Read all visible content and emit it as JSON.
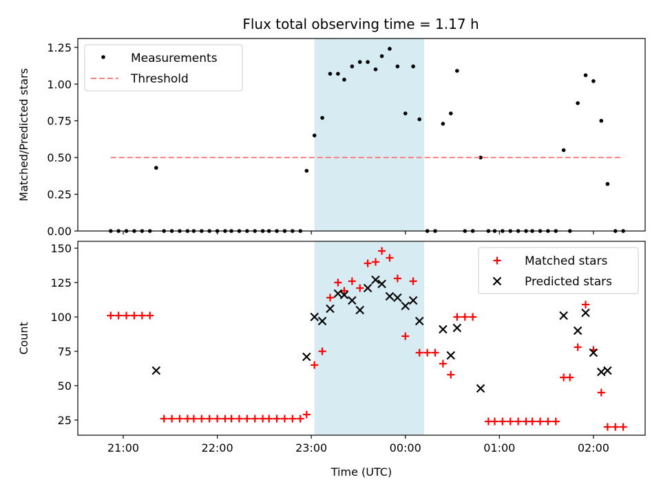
{
  "title": "Flux total observing time = 1.17 h",
  "chart_data": [
    {
      "type": "scatter",
      "panel": "top",
      "ylabel": "Matched/Predicted stars",
      "xlabel": "",
      "ylim": [
        0,
        1.31
      ],
      "yticks": [
        "0.00",
        "0.25",
        "0.50",
        "0.75",
        "1.00",
        "1.25"
      ],
      "legend_position": "top-left",
      "series": [
        {
          "name": "Measurements",
          "marker": "dot",
          "color": "#000000",
          "points": [
            [
              "20:52",
              0
            ],
            [
              "20:57",
              0
            ],
            [
              "21:02",
              0
            ],
            [
              "21:07",
              0
            ],
            [
              "21:12",
              0
            ],
            [
              "21:17",
              0
            ],
            [
              "21:21",
              0.43
            ],
            [
              "21:26",
              0
            ],
            [
              "21:31",
              0
            ],
            [
              "21:36",
              0
            ],
            [
              "21:41",
              0
            ],
            [
              "21:45",
              0
            ],
            [
              "21:50",
              0
            ],
            [
              "21:55",
              0
            ],
            [
              "22:00",
              0
            ],
            [
              "22:05",
              0
            ],
            [
              "22:09",
              0
            ],
            [
              "22:14",
              0
            ],
            [
              "22:19",
              0
            ],
            [
              "22:24",
              0
            ],
            [
              "22:29",
              0
            ],
            [
              "22:33",
              0
            ],
            [
              "22:38",
              0
            ],
            [
              "22:43",
              0
            ],
            [
              "22:48",
              0
            ],
            [
              "22:53",
              0
            ],
            [
              "22:57",
              0.41
            ],
            [
              "23:02",
              0.65
            ],
            [
              "23:07",
              0.77
            ],
            [
              "23:12",
              1.07
            ],
            [
              "23:17",
              1.07
            ],
            [
              "23:21",
              1.03
            ],
            [
              "23:26",
              1.12
            ],
            [
              "23:31",
              1.15
            ],
            [
              "23:36",
              1.15
            ],
            [
              "23:41",
              1.1
            ],
            [
              "23:45",
              1.19
            ],
            [
              "23:50",
              1.24
            ],
            [
              "23:55",
              1.12
            ],
            [
              "00:00",
              0.8
            ],
            [
              "00:05",
              1.12
            ],
            [
              "00:09",
              0.76
            ],
            [
              "00:14",
              0
            ],
            [
              "00:19",
              0
            ],
            [
              "00:24",
              0.73
            ],
            [
              "00:29",
              0.8
            ],
            [
              "00:33",
              1.09
            ],
            [
              "00:38",
              0
            ],
            [
              "00:43",
              0
            ],
            [
              "00:48",
              0.5
            ],
            [
              "00:53",
              0
            ],
            [
              "00:57",
              0
            ],
            [
              "01:02",
              0
            ],
            [
              "01:07",
              0
            ],
            [
              "01:12",
              0
            ],
            [
              "01:17",
              0
            ],
            [
              "01:21",
              0
            ],
            [
              "01:26",
              0
            ],
            [
              "01:31",
              0
            ],
            [
              "01:36",
              0
            ],
            [
              "01:41",
              0.55
            ],
            [
              "01:45",
              0
            ],
            [
              "01:50",
              0.87
            ],
            [
              "01:55",
              1.06
            ],
            [
              "02:00",
              1.02
            ],
            [
              "02:05",
              0.75
            ],
            [
              "02:09",
              0.32
            ],
            [
              "02:14",
              0
            ],
            [
              "02:19",
              0
            ]
          ]
        },
        {
          "name": "Threshold",
          "marker": "dashed-line",
          "color": "#ff7f7f",
          "points": [
            [
              "20:52",
              0.5
            ],
            [
              "02:19",
              0.5
            ]
          ]
        }
      ]
    },
    {
      "type": "scatter",
      "panel": "bottom",
      "ylabel": "Count",
      "xlabel": "Time (UTC)",
      "ylim": [
        14,
        155
      ],
      "yticks": [
        "25",
        "50",
        "75",
        "100",
        "125",
        "150"
      ],
      "xticks": [
        "21:00",
        "22:00",
        "23:00",
        "00:00",
        "01:00",
        "02:00"
      ],
      "legend_position": "top-right",
      "series": [
        {
          "name": "Matched stars",
          "marker": "plus",
          "color": "#ff0000",
          "points": [
            [
              "20:52",
              101
            ],
            [
              "20:57",
              101
            ],
            [
              "21:02",
              101
            ],
            [
              "21:07",
              101
            ],
            [
              "21:12",
              101
            ],
            [
              "21:17",
              101
            ],
            [
              "21:26",
              26
            ],
            [
              "21:31",
              26
            ],
            [
              "21:36",
              26
            ],
            [
              "21:41",
              26
            ],
            [
              "21:45",
              26
            ],
            [
              "21:50",
              26
            ],
            [
              "21:55",
              26
            ],
            [
              "22:00",
              26
            ],
            [
              "22:05",
              26
            ],
            [
              "22:09",
              26
            ],
            [
              "22:14",
              26
            ],
            [
              "22:19",
              26
            ],
            [
              "22:24",
              26
            ],
            [
              "22:29",
              26
            ],
            [
              "22:33",
              26
            ],
            [
              "22:38",
              26
            ],
            [
              "22:43",
              26
            ],
            [
              "22:48",
              26
            ],
            [
              "22:53",
              26
            ],
            [
              "22:57",
              29
            ],
            [
              "23:02",
              65
            ],
            [
              "23:07",
              75
            ],
            [
              "23:12",
              114
            ],
            [
              "23:17",
              125
            ],
            [
              "23:21",
              119
            ],
            [
              "23:26",
              126
            ],
            [
              "23:31",
              121
            ],
            [
              "23:36",
              139
            ],
            [
              "23:41",
              140
            ],
            [
              "23:45",
              148
            ],
            [
              "23:50",
              143
            ],
            [
              "23:55",
              128
            ],
            [
              "00:00",
              86
            ],
            [
              "00:05",
              126
            ],
            [
              "00:09",
              74
            ],
            [
              "00:14",
              74
            ],
            [
              "00:19",
              74
            ],
            [
              "00:24",
              66
            ],
            [
              "00:29",
              58
            ],
            [
              "00:33",
              100
            ],
            [
              "00:38",
              100
            ],
            [
              "00:43",
              100
            ],
            [
              "00:53",
              24
            ],
            [
              "00:57",
              24
            ],
            [
              "01:02",
              24
            ],
            [
              "01:07",
              24
            ],
            [
              "01:12",
              24
            ],
            [
              "01:17",
              24
            ],
            [
              "01:21",
              24
            ],
            [
              "01:26",
              24
            ],
            [
              "01:31",
              24
            ],
            [
              "01:36",
              24
            ],
            [
              "01:41",
              56
            ],
            [
              "01:45",
              56
            ],
            [
              "01:50",
              78
            ],
            [
              "01:55",
              109
            ],
            [
              "02:00",
              76
            ],
            [
              "02:05",
              45
            ],
            [
              "02:09",
              20
            ],
            [
              "02:14",
              20
            ],
            [
              "02:19",
              20
            ]
          ]
        },
        {
          "name": "Predicted stars",
          "marker": "cross",
          "color": "#000000",
          "points": [
            [
              "21:21",
              61
            ],
            [
              "22:57",
              71
            ],
            [
              "23:02",
              100
            ],
            [
              "23:07",
              97
            ],
            [
              "23:12",
              106
            ],
            [
              "23:17",
              117
            ],
            [
              "23:21",
              116
            ],
            [
              "23:26",
              112
            ],
            [
              "23:31",
              105
            ],
            [
              "23:36",
              121
            ],
            [
              "23:41",
              127
            ],
            [
              "23:45",
              124
            ],
            [
              "23:50",
              115
            ],
            [
              "23:55",
              114
            ],
            [
              "00:00",
              108
            ],
            [
              "00:05",
              112
            ],
            [
              "00:09",
              97
            ],
            [
              "00:24",
              91
            ],
            [
              "00:29",
              72
            ],
            [
              "00:33",
              92
            ],
            [
              "00:48",
              48
            ],
            [
              "01:41",
              101
            ],
            [
              "01:50",
              90
            ],
            [
              "01:55",
              103
            ],
            [
              "02:00",
              74
            ],
            [
              "02:05",
              60
            ],
            [
              "02:09",
              61
            ]
          ]
        }
      ]
    }
  ],
  "shaded_interval": {
    "start": "23:02",
    "end": "00:12",
    "color": "#add8e6"
  },
  "x_range": [
    "20:31",
    "02:33"
  ]
}
